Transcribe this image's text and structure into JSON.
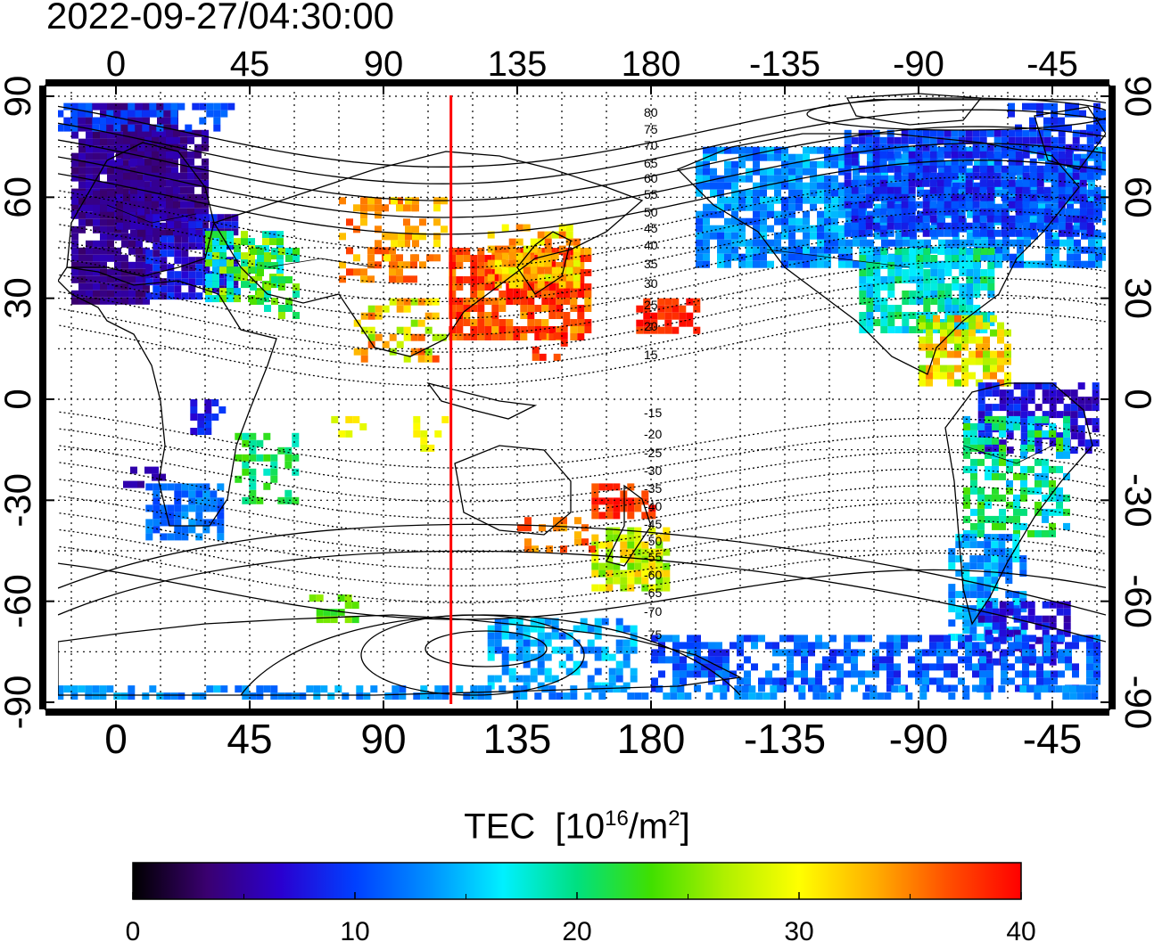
{
  "timestamp": "2022-09-27/04:30:00",
  "map": {
    "projection": "equirectangular",
    "top_lon_ticks": [
      "0",
      "45",
      "90",
      "135",
      "180",
      "-135",
      "-90",
      "-45"
    ],
    "bottom_lon_ticks": [
      "0",
      "45",
      "90",
      "135",
      "180",
      "-135",
      "-90",
      "-45"
    ],
    "left_lat_ticks": [
      "90",
      "60",
      "30",
      "0",
      "-30",
      "-60",
      "-90"
    ],
    "right_lat_ticks": [
      "90",
      "60",
      "30",
      "0",
      "-30",
      "-60",
      "-90"
    ],
    "tick_values": {
      "lon": [
        0,
        45,
        90,
        135,
        180,
        225,
        270,
        315
      ],
      "lat": [
        90,
        60,
        30,
        0,
        -30,
        -60,
        -90
      ]
    },
    "lon_range_east": [
      -22,
      337
    ],
    "lat_range": [
      -90,
      90
    ],
    "marker_longitude": 113,
    "marker_color": "#ff0000",
    "north_contour_labels": [
      "80",
      "75",
      "70",
      "65",
      "60",
      "55",
      "50",
      "45",
      "40",
      "35",
      "30",
      "25",
      "20",
      "15"
    ],
    "south_contour_labels": [
      "-15",
      "-20",
      "-25",
      "-30",
      "-35",
      "-40",
      "-45",
      "-50",
      "-55",
      "-60",
      "-65",
      "-70",
      "-75"
    ]
  },
  "colorbar": {
    "title": "TEC",
    "unit_base": "[10",
    "unit_exp": "16",
    "unit_mid": "/m",
    "unit_exp2": "2",
    "unit_end": "]",
    "tick_labels": [
      "0",
      "10",
      "20",
      "30",
      "40"
    ],
    "range": [
      0,
      40
    ],
    "colors": [
      "#000000",
      "#3a0070",
      "#2a00d0",
      "#0040ff",
      "#0090ff",
      "#00f0ff",
      "#00e080",
      "#40e000",
      "#b0f000",
      "#ffff00",
      "#ffb000",
      "#ff5000",
      "#ff0000"
    ]
  }
}
